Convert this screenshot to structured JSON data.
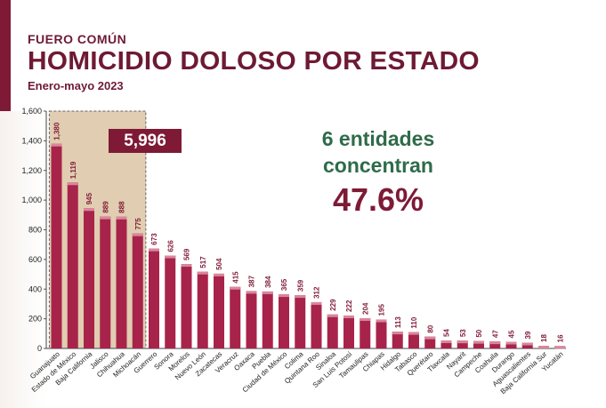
{
  "header": {
    "kicker": "FUERO COMÚN",
    "title": "HOMICIDIO DOLOSO POR ESTADO",
    "period": "Enero-mayo 2023"
  },
  "callout": {
    "total": "5,996",
    "line1": "6 entidades",
    "line2": "concentran",
    "percent": "47.6%"
  },
  "colors": {
    "bar": "#a8234a",
    "bar_top": "#d9869d",
    "brand": "#7e1a36",
    "green": "#2f6b4a",
    "highlight": "#dcc4a3"
  },
  "chart_data": {
    "type": "bar",
    "title": "HOMICIDIO DOLOSO POR ESTADO",
    "xlabel": "",
    "ylabel": "",
    "ylim": [
      0,
      1600
    ],
    "yticks": [
      "0",
      "200",
      "400",
      "600",
      "800",
      "1,000",
      "1,200",
      "1,400",
      "1,600"
    ],
    "grid": false,
    "categories": [
      "Guanajuato",
      "Estado de México",
      "Baja California",
      "Jalisco",
      "Chihuahua",
      "Michoacán",
      "Guerrero",
      "Sonora",
      "Morelos",
      "Nuevo León",
      "Zacatecas",
      "Veracruz",
      "Oaxaca",
      "Puebla",
      "Ciudad de México",
      "Colima",
      "Quintana Roo",
      "Sinaloa",
      "San Luis Potosí",
      "Tamaulipas",
      "Chiapas",
      "Hidalgo",
      "Tabasco",
      "Querétaro",
      "Tlaxcala",
      "Nayarit",
      "Campeche",
      "Coahuila",
      "Durango",
      "Aguascalientes",
      "Baja California Sur",
      "Yucatán"
    ],
    "values": [
      1380,
      1119,
      945,
      889,
      888,
      775,
      673,
      626,
      569,
      517,
      504,
      415,
      387,
      384,
      365,
      359,
      312,
      229,
      222,
      204,
      195,
      113,
      110,
      80,
      54,
      53,
      50,
      47,
      45,
      39,
      18,
      16
    ],
    "value_labels": [
      "1,380",
      "1,119",
      "945",
      "889",
      "888",
      "775",
      "673",
      "626",
      "569",
      "517",
      "504",
      "415",
      "387",
      "384",
      "365",
      "359",
      "312",
      "229",
      "222",
      "204",
      "195",
      "113",
      "110",
      "80",
      "54",
      "53",
      "50",
      "47",
      "45",
      "39",
      "18",
      "16"
    ],
    "highlight_count": 6
  }
}
